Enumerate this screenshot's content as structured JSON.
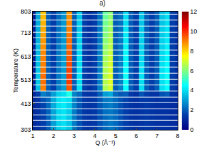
{
  "chart_data": {
    "type": "heatmap",
    "title": "a)",
    "x_label": "Q (Å⁻¹)",
    "y_label": "Temperature (K)",
    "x": [
      1,
      1.25,
      1.5,
      1.75,
      2,
      2.25,
      2.5,
      2.75,
      3,
      3.25,
      3.5,
      3.75,
      4,
      4.25,
      4.5,
      4.75,
      5,
      5.25,
      5.5,
      5.75,
      6,
      6.25,
      6.5,
      6.75,
      7,
      7.25,
      7.5,
      7.75,
      8
    ],
    "y": [
      303,
      328,
      353,
      378,
      403,
      428,
      453,
      478,
      503,
      528,
      553,
      578,
      603,
      628,
      653,
      678,
      703,
      728,
      753,
      778,
      803
    ],
    "z": [
      [
        1.0,
        1.2,
        1.5,
        2.0,
        3.0,
        3.8,
        4.0,
        3.6,
        2.5,
        1.8,
        1.4,
        1.3,
        1.4,
        1.8,
        2.2,
        2.4,
        2.2,
        1.8,
        1.5,
        1.3,
        1.2,
        1.3,
        1.4,
        1.3,
        1.2,
        1.2,
        1.2,
        1.1,
        1.1
      ],
      [
        1.0,
        1.2,
        1.5,
        2.0,
        3.0,
        3.8,
        4.0,
        3.6,
        2.5,
        1.8,
        1.4,
        1.3,
        1.4,
        1.8,
        2.2,
        2.4,
        2.2,
        1.8,
        1.5,
        1.3,
        1.2,
        1.3,
        1.4,
        1.3,
        1.2,
        1.2,
        1.2,
        1.1,
        1.1
      ],
      [
        1.0,
        1.2,
        1.5,
        2.1,
        3.1,
        3.9,
        4.1,
        3.6,
        2.5,
        1.8,
        1.4,
        1.3,
        1.4,
        1.8,
        2.2,
        2.4,
        2.2,
        1.8,
        1.5,
        1.3,
        1.2,
        1.3,
        1.4,
        1.3,
        1.2,
        1.2,
        1.2,
        1.1,
        1.1
      ],
      [
        1.0,
        1.2,
        1.6,
        2.1,
        3.1,
        3.9,
        4.1,
        3.7,
        2.5,
        1.8,
        1.4,
        1.3,
        1.4,
        1.8,
        2.3,
        2.4,
        2.2,
        1.8,
        1.5,
        1.3,
        1.2,
        1.3,
        1.4,
        1.3,
        1.2,
        1.2,
        1.2,
        1.1,
        1.1
      ],
      [
        1.0,
        1.2,
        1.6,
        2.2,
        3.2,
        4.0,
        4.2,
        3.8,
        2.6,
        1.9,
        1.4,
        1.3,
        1.4,
        1.9,
        2.3,
        2.5,
        2.2,
        1.8,
        1.5,
        1.3,
        1.2,
        1.3,
        1.4,
        1.3,
        1.2,
        1.2,
        1.2,
        1.1,
        1.1
      ],
      [
        1.0,
        1.3,
        1.8,
        2.2,
        3.2,
        4.0,
        4.2,
        4.0,
        2.6,
        1.9,
        1.4,
        1.3,
        1.4,
        1.9,
        2.4,
        2.5,
        2.2,
        1.8,
        1.6,
        1.3,
        1.2,
        1.4,
        1.4,
        1.3,
        1.2,
        1.3,
        1.3,
        1.1,
        1.1
      ],
      [
        1.0,
        1.5,
        2.5,
        2.2,
        3.0,
        3.8,
        4.0,
        4.8,
        2.6,
        2.2,
        1.4,
        1.3,
        1.4,
        2.0,
        3.0,
        3.2,
        2.2,
        1.9,
        2.0,
        1.4,
        1.2,
        1.8,
        1.5,
        1.3,
        1.3,
        1.8,
        2.0,
        1.2,
        1.1
      ],
      [
        0.8,
        3.5,
        9.0,
        2.0,
        1.5,
        2.5,
        3.0,
        9.5,
        2.0,
        4.0,
        1.5,
        1.2,
        1.5,
        2.5,
        6.5,
        7.0,
        2.0,
        2.5,
        4.5,
        2.0,
        1.5,
        4.0,
        2.0,
        1.5,
        2.0,
        4.0,
        4.5,
        1.5,
        1.2
      ],
      [
        0.8,
        3.6,
        9.2,
        2.0,
        1.5,
        2.4,
        3.0,
        9.8,
        2.0,
        4.0,
        1.5,
        1.2,
        1.5,
        2.5,
        6.6,
        7.1,
        2.0,
        2.5,
        4.6,
        2.0,
        1.5,
        4.0,
        2.0,
        1.5,
        2.0,
        4.0,
        4.6,
        1.5,
        1.2
      ],
      [
        0.8,
        3.6,
        9.2,
        2.0,
        1.5,
        2.4,
        3.0,
        9.8,
        2.0,
        4.1,
        1.5,
        1.2,
        1.5,
        2.5,
        6.6,
        7.1,
        2.0,
        2.5,
        4.6,
        2.0,
        1.5,
        4.1,
        2.0,
        1.5,
        2.0,
        4.1,
        4.6,
        1.5,
        1.2
      ],
      [
        0.8,
        3.6,
        9.1,
        2.0,
        1.5,
        2.4,
        3.0,
        9.7,
        2.0,
        4.0,
        1.5,
        1.2,
        1.5,
        2.5,
        6.5,
        7.0,
        2.0,
        2.5,
        4.5,
        2.0,
        1.5,
        4.0,
        2.0,
        1.5,
        2.0,
        4.0,
        4.5,
        1.5,
        1.2
      ],
      [
        0.8,
        3.5,
        9.0,
        2.0,
        1.5,
        2.4,
        3.0,
        9.6,
        2.0,
        4.0,
        1.5,
        1.2,
        1.5,
        2.5,
        6.5,
        7.0,
        2.0,
        2.5,
        4.5,
        2.0,
        1.5,
        4.0,
        2.0,
        1.5,
        2.0,
        4.0,
        4.5,
        1.5,
        1.2
      ],
      [
        0.8,
        3.5,
        9.0,
        2.0,
        1.5,
        2.4,
        3.0,
        9.5,
        2.0,
        4.0,
        1.5,
        1.2,
        1.5,
        2.5,
        6.4,
        6.9,
        2.0,
        2.5,
        4.4,
        2.0,
        1.5,
        3.9,
        2.0,
        1.5,
        2.0,
        3.9,
        4.4,
        1.5,
        1.2
      ],
      [
        0.8,
        3.4,
        8.9,
        2.0,
        1.5,
        2.4,
        3.0,
        9.4,
        2.0,
        3.9,
        1.5,
        1.2,
        1.5,
        2.5,
        6.3,
        6.8,
        2.0,
        2.4,
        4.4,
        2.0,
        1.5,
        3.9,
        2.0,
        1.5,
        2.0,
        3.9,
        4.4,
        1.5,
        1.2
      ],
      [
        0.8,
        3.4,
        8.8,
        2.0,
        1.5,
        2.4,
        3.0,
        9.3,
        2.0,
        3.9,
        1.5,
        1.2,
        1.5,
        2.4,
        6.2,
        6.7,
        2.0,
        2.4,
        4.3,
        2.0,
        1.5,
        3.8,
        2.0,
        1.5,
        2.0,
        3.8,
        4.3,
        1.5,
        1.2
      ],
      [
        0.8,
        3.3,
        8.7,
        2.0,
        1.5,
        2.3,
        2.9,
        9.2,
        2.0,
        3.8,
        1.5,
        1.2,
        1.5,
        2.4,
        6.1,
        6.6,
        2.0,
        2.4,
        4.2,
        2.0,
        1.5,
        3.8,
        2.0,
        1.5,
        2.0,
        3.8,
        4.2,
        1.5,
        1.2
      ],
      [
        0.8,
        3.3,
        8.6,
        2.0,
        1.5,
        2.3,
        2.9,
        9.1,
        2.0,
        3.8,
        1.5,
        1.2,
        1.5,
        2.4,
        6.0,
        6.5,
        2.0,
        2.4,
        4.2,
        2.0,
        1.5,
        3.7,
        2.0,
        1.5,
        2.0,
        3.7,
        4.1,
        1.5,
        1.2
      ],
      [
        0.8,
        3.2,
        8.5,
        2.0,
        1.5,
        2.3,
        2.9,
        9.0,
        2.0,
        3.7,
        1.5,
        1.2,
        1.5,
        2.4,
        5.9,
        6.4,
        2.0,
        2.3,
        4.1,
        2.0,
        1.5,
        3.7,
        2.0,
        1.5,
        2.0,
        3.7,
        4.1,
        1.5,
        1.2
      ],
      [
        0.8,
        3.2,
        8.4,
        2.0,
        1.5,
        2.3,
        2.9,
        8.9,
        2.0,
        3.7,
        1.5,
        1.2,
        1.5,
        2.4,
        5.8,
        6.3,
        2.0,
        2.3,
        4.0,
        2.0,
        1.5,
        3.6,
        2.0,
        1.5,
        2.0,
        3.6,
        4.0,
        1.5,
        1.2
      ],
      [
        0.8,
        3.1,
        8.3,
        2.0,
        1.5,
        2.2,
        2.8,
        8.8,
        2.0,
        3.6,
        1.5,
        1.2,
        1.5,
        2.3,
        5.7,
        6.2,
        2.0,
        2.3,
        4.0,
        2.0,
        1.5,
        3.6,
        2.0,
        1.5,
        2.0,
        3.6,
        4.0,
        1.5,
        1.2
      ],
      [
        0.8,
        3.1,
        8.2,
        2.0,
        1.5,
        2.2,
        2.8,
        8.7,
        2.0,
        3.6,
        1.5,
        1.2,
        1.5,
        2.3,
        5.6,
        6.1,
        2.0,
        2.3,
        3.9,
        2.0,
        1.5,
        3.5,
        2.0,
        1.5,
        2.0,
        3.5,
        3.9,
        1.5,
        1.2
      ]
    ],
    "xlim": [
      1,
      8
    ],
    "xticks": [
      1,
      2,
      3,
      4,
      5,
      6,
      7,
      8
    ],
    "ylim": [
      303,
      803
    ],
    "yticks": [
      303,
      413,
      513,
      613,
      713,
      803
    ],
    "zlim": [
      0,
      12
    ],
    "zticks": [
      0,
      2,
      4,
      6,
      8,
      10,
      12
    ]
  }
}
